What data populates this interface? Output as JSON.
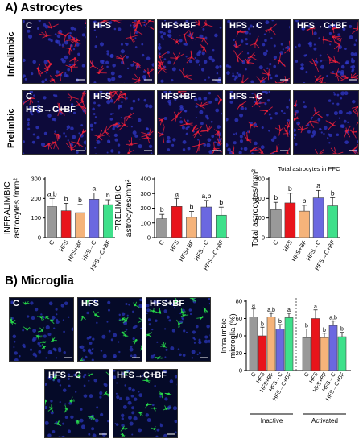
{
  "panels": {
    "astrocytes_title": "A) Astrocytes",
    "microglia_title": "B) Microglia"
  },
  "astro_rows": {
    "infralimbic": "Infralimbic",
    "prelimbic": "Prelimbic"
  },
  "astro_infra_images": [
    "C",
    "HFS",
    "HFS+BF",
    "HFS→C",
    "HFS→C+BF"
  ],
  "astro_pre_images": [
    {
      "line1": "C",
      "line2": "HFS→C+BF"
    },
    {
      "line1": "HFS",
      "line2": ""
    },
    {
      "line1": "HFS+BF",
      "line2": ""
    },
    {
      "line1": "HFS→C",
      "line2": ""
    },
    {
      "line1": "",
      "line2": ""
    }
  ],
  "micro_images": [
    "C",
    "HFS",
    "HFS+BF",
    "HFS→C",
    "HFS→C+BF"
  ],
  "colors": {
    "C": "#999999",
    "HFS": "#e8141b",
    "HFS+BF": "#f5b37a",
    "HFS→C": "#6b68e0",
    "HFS→C+BF": "#3ee08a"
  },
  "chart_data": [
    {
      "type": "bar",
      "ylabel_line1": "INFRALIMBIC",
      "ylabel_line2": "astrocytes /mm²",
      "categories": [
        "C",
        "HFS",
        "HFS+BF",
        "HFS→C",
        "HFS→C+BF"
      ],
      "values": [
        158,
        137,
        127,
        196,
        168
      ],
      "errors": [
        42,
        38,
        42,
        32,
        25
      ],
      "letters": [
        "a,b",
        "b",
        "b",
        "a",
        "b"
      ],
      "ylim": [
        0,
        300
      ],
      "ticks": [
        0,
        100,
        200,
        300
      ]
    },
    {
      "type": "bar",
      "ylabel_line1": "PRELIMBIC",
      "ylabel_line2": "astrocytes/mm²",
      "categories": [
        "C",
        "HFS",
        "HFS+BF",
        "HFS→C",
        "HFS→C+BF"
      ],
      "values": [
        128,
        212,
        138,
        208,
        152
      ],
      "errors": [
        30,
        55,
        40,
        45,
        55
      ],
      "letters": [
        "b",
        "a",
        "b",
        "a,b",
        "b"
      ],
      "ylim": [
        0,
        400
      ],
      "ticks": [
        0,
        100,
        200,
        300,
        400
      ]
    },
    {
      "type": "bar",
      "title": "Total astrocytes in PFC",
      "ylabel_line1": "Total astrocytes/mm²",
      "ylabel_line2": "",
      "categories": [
        "C",
        "HFS",
        "HFS+BF",
        "HFS→C",
        "HFS→C+BF"
      ],
      "values": [
        142,
        177,
        135,
        203,
        162
      ],
      "errors": [
        38,
        50,
        30,
        38,
        42
      ],
      "letters": [
        "b",
        "b",
        "b",
        "a",
        "b"
      ],
      "ylim": [
        0,
        300
      ],
      "ticks": [
        0,
        100,
        200,
        300
      ]
    },
    {
      "type": "bar",
      "ylabel_line1": "Infralimbic",
      "ylabel_line2": "microglia (%)",
      "categories": [
        "C",
        "HFS",
        "HFS+BF",
        "HFS→C",
        "HFS→C+BF"
      ],
      "groups": [
        "Inactive",
        "Activated"
      ],
      "series": [
        {
          "group": "Inactive",
          "values": [
            62,
            40,
            62,
            48,
            61
          ],
          "errors": [
            9,
            10,
            4,
            5,
            5
          ],
          "letters": [
            "a",
            "b",
            "a,b",
            "b",
            "a"
          ]
        },
        {
          "group": "Activated",
          "values": [
            38,
            60,
            38,
            52,
            39
          ],
          "errors": [
            10,
            10,
            5,
            5,
            5
          ],
          "letters": [
            "b",
            "a",
            "b",
            "a,b",
            "b"
          ]
        }
      ],
      "ylim": [
        0,
        80
      ],
      "ticks": [
        0,
        20,
        40,
        60,
        80
      ]
    }
  ]
}
